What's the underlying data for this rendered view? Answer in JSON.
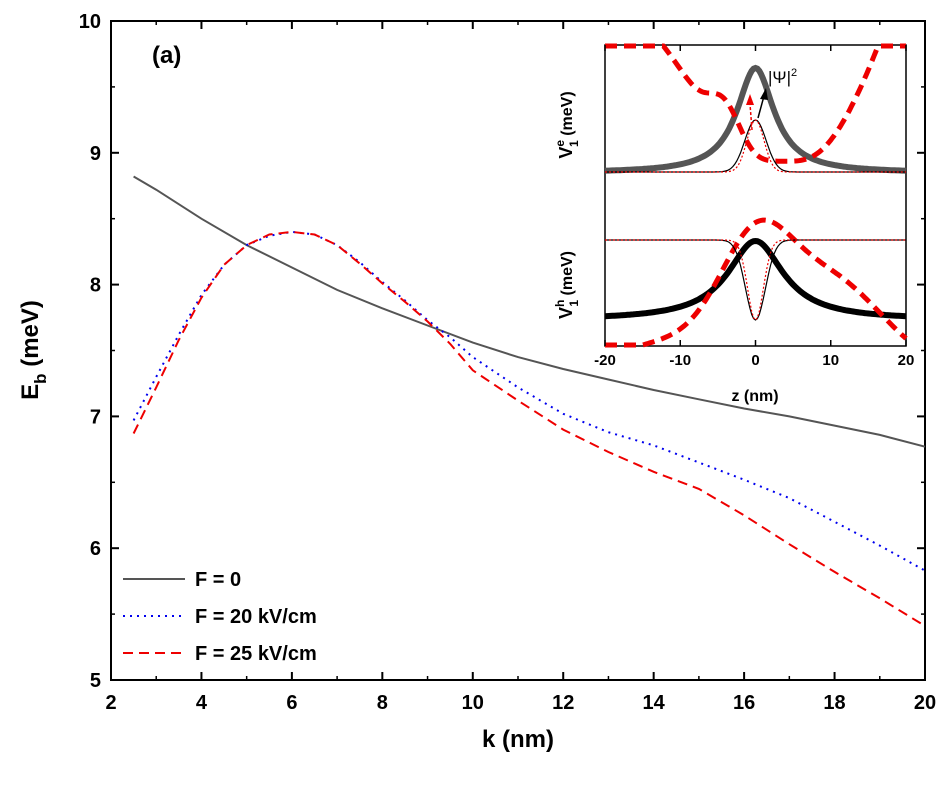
{
  "chart_data": {
    "type": "line",
    "panel_label": "(a)",
    "xlabel": "k (nm)",
    "ylabel_main": "E",
    "ylabel_sub": "b",
    "ylabel_unit": " (meV)",
    "xlim": [
      2,
      20
    ],
    "ylim": [
      5,
      10
    ],
    "xticks": [
      2,
      4,
      6,
      8,
      10,
      12,
      14,
      16,
      18,
      20
    ],
    "yticks": [
      5,
      6,
      7,
      8,
      9,
      10
    ],
    "legend_position": "bottom-left",
    "series": [
      {
        "name": "F = 0",
        "color": "#555555",
        "style": "solid",
        "x": [
          2.5,
          3,
          4,
          5,
          6,
          7,
          8,
          9,
          10,
          11,
          12,
          13,
          14,
          15,
          16,
          17,
          18,
          19,
          20
        ],
        "y": [
          8.82,
          8.72,
          8.5,
          8.3,
          8.13,
          7.96,
          7.82,
          7.69,
          7.56,
          7.45,
          7.36,
          7.28,
          7.2,
          7.13,
          7.06,
          7.0,
          6.93,
          6.86,
          6.77
        ]
      },
      {
        "name": "F = 20 kV/cm",
        "color": "#0000ee",
        "style": "dotted",
        "x": [
          2.5,
          3,
          3.5,
          4,
          4.5,
          5,
          5.5,
          6,
          6.5,
          7,
          7.5,
          8,
          8.5,
          9,
          9.5,
          10,
          11,
          12,
          13,
          14,
          15,
          16,
          17,
          18,
          19,
          20
        ],
        "y": [
          6.97,
          7.3,
          7.62,
          7.92,
          8.15,
          8.3,
          8.37,
          8.4,
          8.38,
          8.3,
          8.17,
          8.02,
          7.88,
          7.73,
          7.6,
          7.45,
          7.22,
          7.02,
          6.88,
          6.78,
          6.65,
          6.52,
          6.38,
          6.2,
          6.02,
          5.83
        ]
      },
      {
        "name": "F = 25 kV/cm",
        "color": "#ee0000",
        "style": "dashed",
        "x": [
          2.5,
          3,
          3.5,
          4,
          4.5,
          5,
          5.5,
          6,
          6.5,
          7,
          7.5,
          8,
          8.5,
          9,
          9.5,
          10,
          11,
          12,
          13,
          14,
          15,
          16,
          17,
          18,
          19,
          20
        ],
        "y": [
          6.87,
          7.22,
          7.58,
          7.9,
          8.15,
          8.3,
          8.38,
          8.4,
          8.38,
          8.3,
          8.16,
          8.01,
          7.87,
          7.72,
          7.55,
          7.35,
          7.12,
          6.9,
          6.73,
          6.58,
          6.45,
          6.25,
          6.03,
          5.82,
          5.62,
          5.41
        ]
      }
    ],
    "inset": {
      "xlabel": "z (nm)",
      "xlim": [
        -20,
        20
      ],
      "xticks": [
        -20,
        -10,
        0,
        10,
        20
      ],
      "ylabel_top": "V",
      "ylabel_top_sup": "e",
      "ylabel_top_sub": "1",
      "ylabel_top_unit": " (meV)",
      "ylabel_bottom": "V",
      "ylabel_bottom_sup": "h",
      "ylabel_bottom_sub": "1",
      "ylabel_bottom_unit": " (meV)",
      "psi_label": "|Ψ|",
      "psi_exp": "2",
      "curves": [
        {
          "name": "electron potential F=0",
          "color": "#555555",
          "style": "solid",
          "weight": "thick",
          "shape": "ve0"
        },
        {
          "name": "electron potential F=25 kV/cm",
          "color": "#ee0000",
          "style": "dashed",
          "weight": "thick",
          "shape": "ve25"
        },
        {
          "name": "electron density F=0",
          "color": "#000000",
          "style": "solid",
          "weight": "thin",
          "shape": "pe0"
        },
        {
          "name": "electron density F=25 kV/cm",
          "color": "#ee0000",
          "style": "dotted",
          "weight": "thin",
          "shape": "pe25"
        },
        {
          "name": "hole potential F=0",
          "color": "#000000",
          "style": "solid",
          "weight": "thick",
          "shape": "vh0"
        },
        {
          "name": "hole potential F=25 kV/cm",
          "color": "#ee0000",
          "style": "dashed",
          "weight": "thick",
          "shape": "vh25"
        },
        {
          "name": "hole density F=0",
          "color": "#000000",
          "style": "solid",
          "weight": "thin",
          "shape": "ph0"
        },
        {
          "name": "hole density F=25 kV/cm",
          "color": "#ee0000",
          "style": "dotted",
          "weight": "thin",
          "shape": "ph25"
        }
      ]
    }
  }
}
